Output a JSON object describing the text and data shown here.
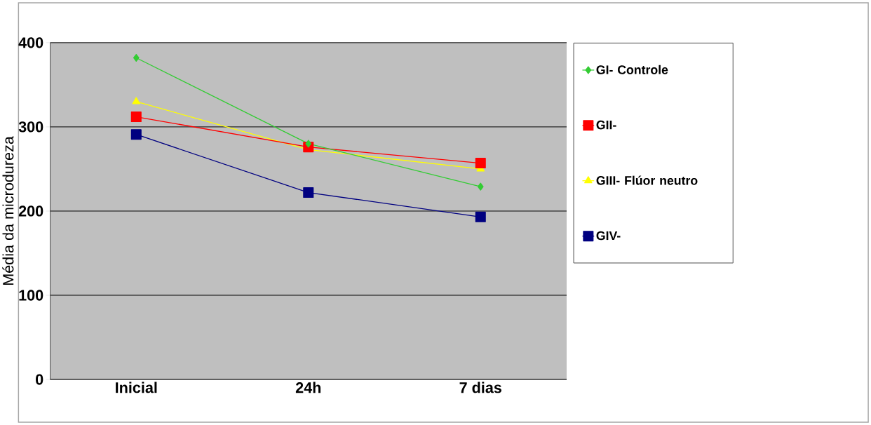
{
  "chart_data": {
    "type": "line",
    "ylabel": "Média da microdureza",
    "categories": [
      "Inicial",
      "24h",
      "7 dias"
    ],
    "series": [
      {
        "name": "GI- Controle",
        "color": "#33cc33",
        "marker": "diamond",
        "values": [
          382,
          280,
          229
        ]
      },
      {
        "name": "GII-",
        "color": "#ff0000",
        "marker": "square",
        "values": [
          312,
          276,
          257
        ]
      },
      {
        "name": "GIII- Flúor neutro",
        "color": "#ffff00",
        "marker": "triangle",
        "values": [
          330,
          273,
          250
        ]
      },
      {
        "name": "GIV-",
        "color": "#000080",
        "marker": "square",
        "values": [
          291,
          222,
          193
        ]
      }
    ],
    "ylim": [
      0,
      400
    ],
    "yticks": [
      0,
      100,
      200,
      300,
      400
    ],
    "grid": "y",
    "legend": "right"
  }
}
